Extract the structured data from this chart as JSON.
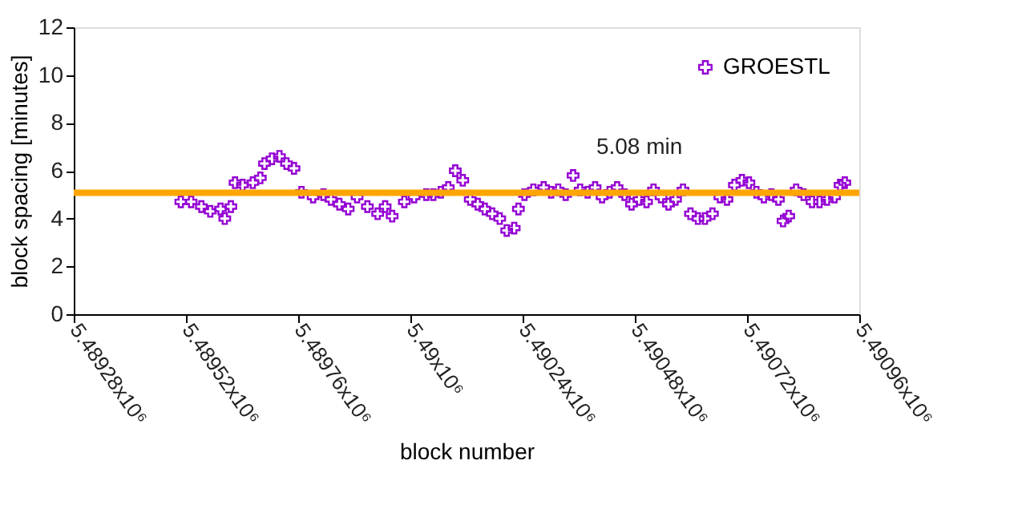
{
  "chart_data": {
    "type": "scatter",
    "xlabel": "block number",
    "ylabel": "block spacing [minutes]",
    "x": [
      5489509,
      5489531,
      5489553,
      5489572,
      5489594,
      5489603,
      5489616,
      5489625,
      5489641,
      5489663,
      5489679,
      5489688,
      5489704,
      5489720,
      5489735,
      5489751,
      5489767,
      5489792,
      5489814,
      5489830,
      5489848,
      5489867,
      5489886,
      5489908,
      5489930,
      5489946,
      5489961,
      5489987,
      5490008,
      5490034,
      5490049,
      5490065,
      5490081,
      5490096,
      5490112,
      5490128,
      5490144,
      5490159,
      5490175,
      5490191,
      5490206,
      5490222,
      5490231,
      5490244,
      5490263,
      5490285,
      5490301,
      5490316,
      5490332,
      5490348,
      5490363,
      5490379,
      5490395,
      5490410,
      5490426,
      5490442,
      5490458,
      5490473,
      5490489,
      5490505,
      5490520,
      5490536,
      5490552,
      5490567,
      5490583,
      5490599,
      5490615,
      5490630,
      5490646,
      5490662,
      5490677,
      5490693,
      5490709,
      5490724,
      5490740,
      5490756,
      5490772,
      5490787,
      5490797,
      5490809,
      5490825,
      5490841,
      5490859,
      5490875,
      5490891,
      5490907,
      5490919,
      5490929
    ],
    "series": [
      {
        "name": "GROESTL",
        "color": "#9400d3",
        "values": [
          4.7,
          4.7,
          4.5,
          4.3,
          4.4,
          4.0,
          4.5,
          5.5,
          5.4,
          5.5,
          5.7,
          6.3,
          6.5,
          6.6,
          6.3,
          6.1,
          5.1,
          4.9,
          5.0,
          4.8,
          4.6,
          4.4,
          4.9,
          4.5,
          4.2,
          4.5,
          4.1,
          4.7,
          4.9,
          5.0,
          5.0,
          5.1,
          5.3,
          6.0,
          5.6,
          4.8,
          4.6,
          4.4,
          4.2,
          4.0,
          3.5,
          3.6,
          4.4,
          5.0,
          5.2,
          5.3,
          5.1,
          5.2,
          5.0,
          5.8,
          5.2,
          5.1,
          5.3,
          4.9,
          5.1,
          5.3,
          5.0,
          4.6,
          4.8,
          4.7,
          5.2,
          4.9,
          4.6,
          4.8,
          5.2,
          4.2,
          4.0,
          4.0,
          4.2,
          4.9,
          4.8,
          5.4,
          5.6,
          5.5,
          5.1,
          4.9,
          5.0,
          4.8,
          3.9,
          4.1,
          5.2,
          5.0,
          4.7,
          4.7,
          4.8,
          4.9,
          5.4,
          5.5
        ]
      }
    ],
    "xlim": [
      5489280,
      5490960
    ],
    "xticks": [
      {
        "value": 5489280,
        "label": "5.48928x10⁶"
      },
      {
        "value": 5489520,
        "label": "5.48952x10⁶"
      },
      {
        "value": 5489760,
        "label": "5.48976x10⁶"
      },
      {
        "value": 5490000,
        "label": "5.49x10⁶"
      },
      {
        "value": 5490240,
        "label": "5.49024x10⁶"
      },
      {
        "value": 5490480,
        "label": "5.49048x10⁶"
      },
      {
        "value": 5490720,
        "label": "5.49072x10⁶"
      },
      {
        "value": 5490960,
        "label": "5.49096x10⁶"
      }
    ],
    "ylim": [
      0,
      12
    ],
    "yticks": [
      0,
      2,
      4,
      6,
      8,
      10,
      12
    ],
    "ref_lines": [
      {
        "axis": "y",
        "value": 5.08,
        "label": "5.08 min",
        "color": "#ffa500"
      }
    ],
    "marker": "cross",
    "grid": false,
    "legend": "top right"
  }
}
